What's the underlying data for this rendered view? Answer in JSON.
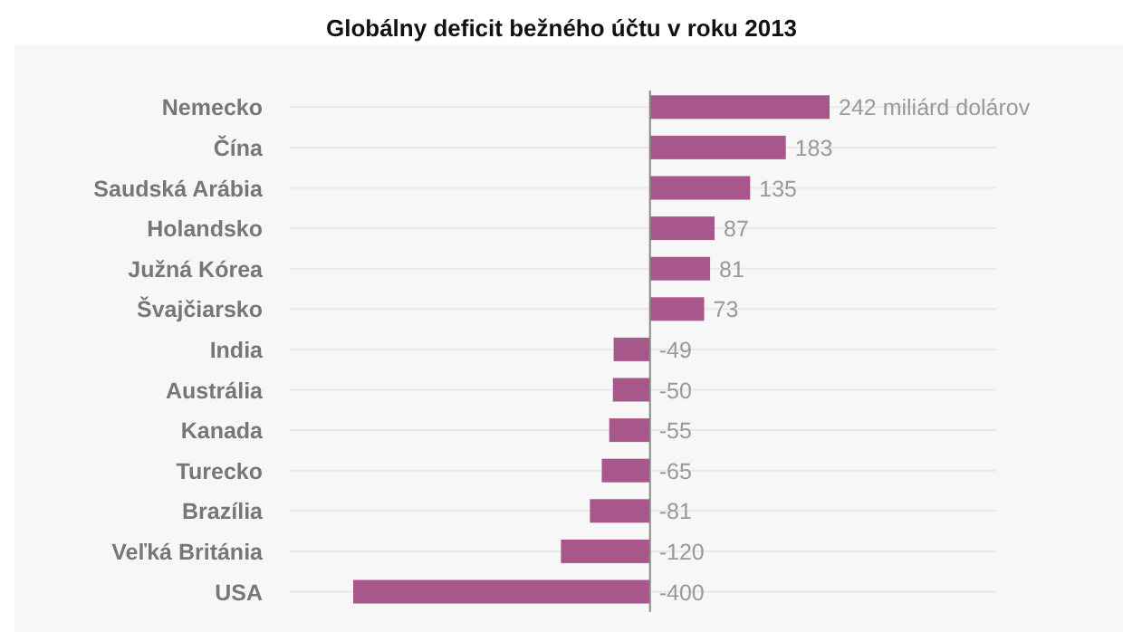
{
  "chart_data": {
    "type": "bar",
    "orientation": "horizontal",
    "title": "Globálny deficit bežného účtu v roku 2013",
    "categories": [
      "Nemecko",
      "Čína",
      "Saudská Arábia",
      "Holandsko",
      "Južná Kórea",
      "Švajčiarsko",
      "India",
      "Austrália",
      "Kanada",
      "Turecko",
      "Brazília",
      "Veľká Británia",
      "USA"
    ],
    "values": [
      242,
      183,
      135,
      87,
      81,
      73,
      -49,
      -50,
      -55,
      -65,
      -81,
      -120,
      -400
    ],
    "value_labels": [
      "242 miliárd dolárov",
      "183",
      "135",
      "87",
      "81",
      "73",
      "-49",
      "-50",
      "-55",
      "-65",
      "-81",
      "-120",
      "-400"
    ],
    "color": "#a8578a"
  }
}
